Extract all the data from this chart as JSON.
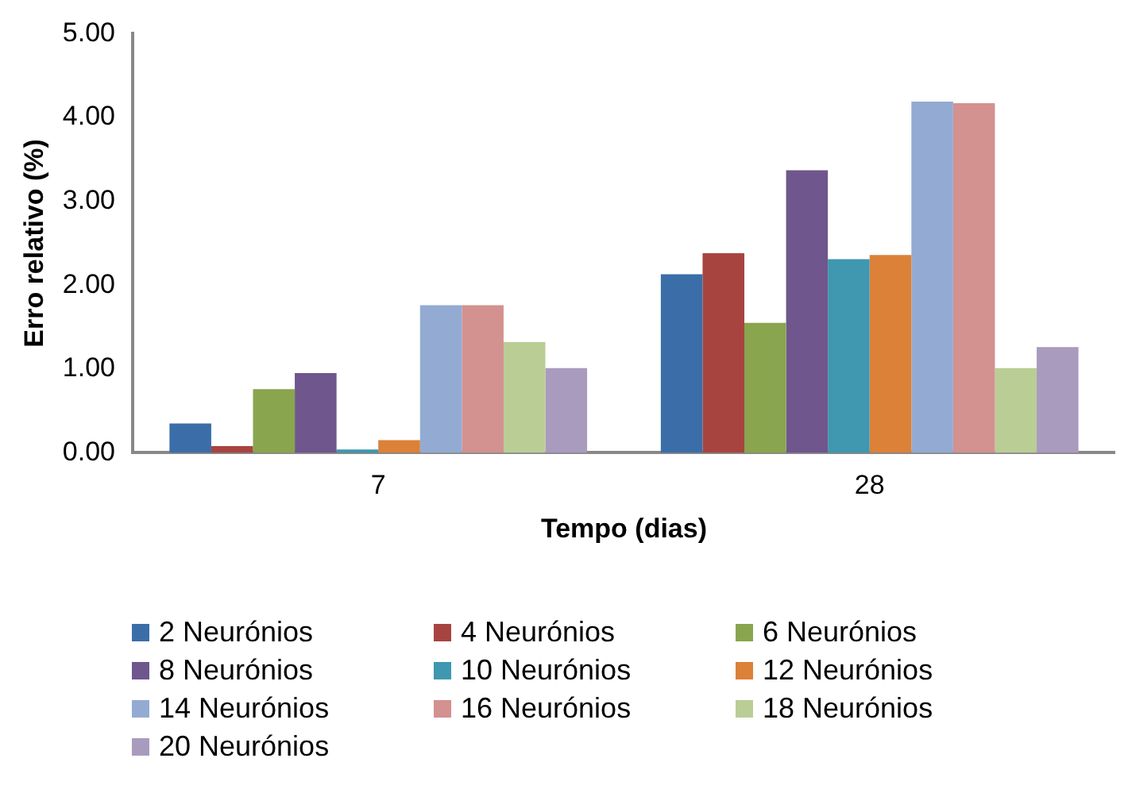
{
  "chart_data": {
    "type": "bar",
    "xlabel": "Tempo (dias)",
    "ylabel": "Erro relativo (%)",
    "categories": [
      "7",
      "28"
    ],
    "series": [
      {
        "name": "2 Neurónios",
        "color": "#3b6ea8",
        "values": [
          0.35,
          2.13
        ]
      },
      {
        "name": "4 Neurónios",
        "color": "#a84440",
        "values": [
          0.08,
          2.38
        ]
      },
      {
        "name": "6 Neurónios",
        "color": "#89a54e",
        "values": [
          0.76,
          1.55
        ]
      },
      {
        "name": "8 Neurónios",
        "color": "#6f568d",
        "values": [
          0.95,
          3.37
        ]
      },
      {
        "name": "10 Neurónios",
        "color": "#3f97b0",
        "values": [
          0.04,
          2.31
        ]
      },
      {
        "name": "12 Neurónios",
        "color": "#db8138",
        "values": [
          0.15,
          2.36
        ]
      },
      {
        "name": "14 Neurónios",
        "color": "#93abd2",
        "values": [
          1.76,
          4.19
        ]
      },
      {
        "name": "16 Neurónios",
        "color": "#d39190",
        "values": [
          1.76,
          4.17
        ]
      },
      {
        "name": "18 Neurónios",
        "color": "#bacd95",
        "values": [
          1.32,
          1.01
        ]
      },
      {
        "name": "20 Neurónios",
        "color": "#a99bbe",
        "values": [
          1.01,
          1.26
        ]
      }
    ],
    "ylim": [
      0,
      5
    ],
    "yticks": [
      {
        "value": 0,
        "label": "0.00"
      },
      {
        "value": 1,
        "label": "1.00"
      },
      {
        "value": 2,
        "label": "2.00"
      },
      {
        "value": 3,
        "label": "3.00"
      },
      {
        "value": 4,
        "label": "4.00"
      },
      {
        "value": 5,
        "label": "5.00"
      }
    ],
    "grid": false,
    "legend": "bottom"
  }
}
